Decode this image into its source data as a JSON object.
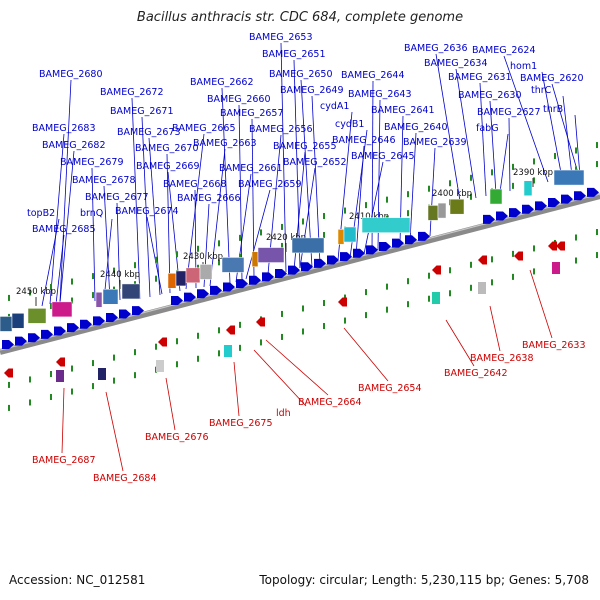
{
  "title": "Bacillus anthracis str. CDC 684, complete genome",
  "footer": {
    "accession": "Accession: NC_012581",
    "summary": "Topology: circular; Length: 5,230,115 bp; Genes: 5,708"
  },
  "colors": {
    "forward": "#0000cc",
    "reverse": "#cc0000",
    "backbone": "#777777",
    "ticks": "#228822",
    "background": "#ffffff"
  },
  "kbp_labels": [
    "2390 kbp",
    "2400 kbp",
    "2410 kbp",
    "2420 kbp",
    "2430 kbp",
    "2440 kbp",
    "2450 kbp"
  ],
  "top_labels": [
    "BAMEG_2653",
    "BAMEG_2651",
    "BAMEG_2636",
    "BAMEG_2624",
    "BAMEG_2634",
    "hom1",
    "BAMEG_2680",
    "BAMEG_2650",
    "BAMEG_2644",
    "BAMEG_2631",
    "BAMEG_2620",
    "BAMEG_2662",
    "BAMEG_2649",
    "thrC",
    "BAMEG_2672",
    "BAMEG_2643",
    "BAMEG_2630",
    "BAMEG_2660",
    "cydA1",
    "thrB",
    "BAMEG_2671",
    "BAMEG_2657",
    "BAMEG_2641",
    "BAMEG_2627",
    "cydB1",
    "BAMEG_2683",
    "BAMEG_2665",
    "BAMEG_2656",
    "BAMEG_2640",
    "fabG",
    "BAMEG_2673",
    "BAMEG_2663",
    "BAMEG_2646",
    "BAMEG_2682",
    "BAMEG_2670",
    "BAMEG_2655",
    "BAMEG_2639",
    "BAMEG_2645",
    "BAMEG_2652",
    "BAMEG_2679",
    "BAMEG_2669",
    "BAMEG_2661",
    "BAMEG_2678",
    "BAMEG_2668",
    "BAMEG_2659",
    "BAMEG_2677",
    "BAMEG_2666",
    "topB2",
    "brnQ",
    "BAMEG_2674",
    "BAMEG_2685"
  ],
  "bottom_labels": [
    "BAMEG_2633",
    "BAMEG_2638",
    "BAMEG_2642",
    "BAMEG_2654",
    "BAMEG_2664",
    "ldh",
    "BAMEG_2675",
    "BAMEG_2676",
    "BAMEG_2687",
    "BAMEG_2684"
  ]
}
